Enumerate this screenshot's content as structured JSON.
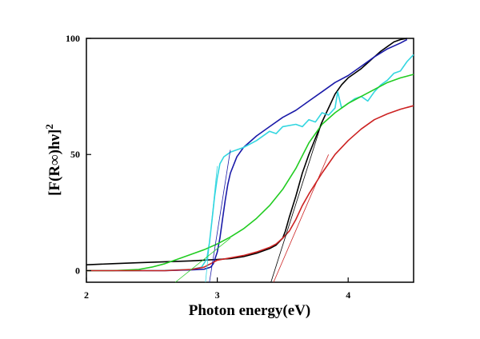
{
  "chart_data": {
    "type": "line",
    "title": "",
    "xlabel": "Photon energy(eV)",
    "ylabel_main": "[F(R∞)hν]",
    "ylabel_sup": "2",
    "xlim": [
      2.0,
      4.5
    ],
    "ylim": [
      -5,
      100
    ],
    "x_ticks": [
      2,
      3,
      4
    ],
    "x_tick_labels": [
      "2",
      "3",
      "4"
    ],
    "y_ticks": [
      0,
      50,
      100
    ],
    "y_tick_labels": [
      "0",
      "50",
      "100"
    ],
    "grid": false,
    "legend": "none",
    "series": [
      {
        "color": "#000000",
        "points": [
          [
            2.0,
            2.5
          ],
          [
            2.2,
            3.0
          ],
          [
            2.4,
            3.4
          ],
          [
            2.6,
            3.8
          ],
          [
            2.8,
            4.2
          ],
          [
            3.0,
            4.8
          ],
          [
            3.1,
            5.2
          ],
          [
            3.2,
            6.0
          ],
          [
            3.3,
            7.5
          ],
          [
            3.4,
            9.5
          ],
          [
            3.45,
            11.0
          ],
          [
            3.5,
            14
          ],
          [
            3.52,
            17
          ],
          [
            3.55,
            23
          ],
          [
            3.6,
            32
          ],
          [
            3.65,
            42
          ],
          [
            3.7,
            50
          ],
          [
            3.75,
            57
          ],
          [
            3.8,
            64
          ],
          [
            3.85,
            70
          ],
          [
            3.9,
            76
          ],
          [
            3.95,
            80
          ],
          [
            4.0,
            83
          ],
          [
            4.05,
            85
          ],
          [
            4.1,
            87
          ],
          [
            4.15,
            89.5
          ],
          [
            4.2,
            92
          ],
          [
            4.25,
            94.5
          ],
          [
            4.3,
            96.5
          ],
          [
            4.35,
            98.5
          ],
          [
            4.4,
            99.5
          ],
          [
            4.45,
            100
          ]
        ]
      },
      {
        "color": "#1a1aa8",
        "points": [
          [
            2.0,
            0
          ],
          [
            2.4,
            0
          ],
          [
            2.6,
            0
          ],
          [
            2.8,
            0.3
          ],
          [
            2.9,
            0.6
          ],
          [
            2.95,
            1.5
          ],
          [
            2.97,
            3
          ],
          [
            3.0,
            8
          ],
          [
            3.02,
            14
          ],
          [
            3.04,
            22
          ],
          [
            3.06,
            30
          ],
          [
            3.08,
            37
          ],
          [
            3.1,
            42
          ],
          [
            3.15,
            49
          ],
          [
            3.2,
            53
          ],
          [
            3.3,
            58
          ],
          [
            3.4,
            62
          ],
          [
            3.5,
            66
          ],
          [
            3.6,
            69
          ],
          [
            3.7,
            73
          ],
          [
            3.8,
            77
          ],
          [
            3.9,
            81
          ],
          [
            4.0,
            84
          ],
          [
            4.1,
            88
          ],
          [
            4.2,
            92
          ],
          [
            4.3,
            95.5
          ],
          [
            4.4,
            98
          ],
          [
            4.45,
            99.5
          ]
        ]
      },
      {
        "color": "#33d6e0",
        "points": [
          [
            2.0,
            0
          ],
          [
            2.4,
            0
          ],
          [
            2.6,
            0.1
          ],
          [
            2.8,
            0.5
          ],
          [
            2.88,
            1.5
          ],
          [
            2.92,
            5
          ],
          [
            2.94,
            12
          ],
          [
            2.96,
            22
          ],
          [
            2.98,
            32
          ],
          [
            3.0,
            40
          ],
          [
            3.02,
            46
          ],
          [
            3.05,
            49
          ],
          [
            3.1,
            51
          ],
          [
            3.15,
            52
          ],
          [
            3.2,
            53
          ],
          [
            3.3,
            56
          ],
          [
            3.4,
            60
          ],
          [
            3.45,
            59
          ],
          [
            3.5,
            62
          ],
          [
            3.6,
            63
          ],
          [
            3.65,
            62
          ],
          [
            3.7,
            65
          ],
          [
            3.75,
            64
          ],
          [
            3.8,
            68
          ],
          [
            3.85,
            67
          ],
          [
            3.9,
            70
          ],
          [
            3.92,
            77
          ],
          [
            3.95,
            70
          ],
          [
            4.0,
            72
          ],
          [
            4.05,
            74
          ],
          [
            4.1,
            75
          ],
          [
            4.15,
            73
          ],
          [
            4.2,
            77
          ],
          [
            4.25,
            80
          ],
          [
            4.3,
            82
          ],
          [
            4.35,
            85
          ],
          [
            4.4,
            86
          ],
          [
            4.45,
            90
          ],
          [
            4.5,
            93
          ]
        ]
      },
      {
        "color": "#22cc22",
        "points": [
          [
            2.0,
            0
          ],
          [
            2.2,
            0
          ],
          [
            2.4,
            0.5
          ],
          [
            2.5,
            1.5
          ],
          [
            2.6,
            3.0
          ],
          [
            2.7,
            5.0
          ],
          [
            2.8,
            7.0
          ],
          [
            2.9,
            9.0
          ],
          [
            3.0,
            11.5
          ],
          [
            3.1,
            14.5
          ],
          [
            3.2,
            18
          ],
          [
            3.3,
            22.5
          ],
          [
            3.4,
            28
          ],
          [
            3.5,
            35
          ],
          [
            3.6,
            44
          ],
          [
            3.7,
            55
          ],
          [
            3.8,
            63
          ],
          [
            3.9,
            68
          ],
          [
            4.0,
            72
          ],
          [
            4.1,
            75
          ],
          [
            4.2,
            78
          ],
          [
            4.3,
            81
          ],
          [
            4.4,
            83
          ],
          [
            4.5,
            84.5
          ]
        ]
      },
      {
        "color": "#cc2222",
        "points": [
          [
            2.0,
            0
          ],
          [
            2.6,
            0
          ],
          [
            2.8,
            0.5
          ],
          [
            2.9,
            1.5
          ],
          [
            2.95,
            3.0
          ],
          [
            3.0,
            4.5
          ],
          [
            3.1,
            5.5
          ],
          [
            3.2,
            6.5
          ],
          [
            3.3,
            8.0
          ],
          [
            3.4,
            10.0
          ],
          [
            3.45,
            11.5
          ],
          [
            3.5,
            14
          ],
          [
            3.55,
            17
          ],
          [
            3.6,
            22
          ],
          [
            3.65,
            28
          ],
          [
            3.7,
            33
          ],
          [
            3.8,
            42
          ],
          [
            3.9,
            50
          ],
          [
            4.0,
            56
          ],
          [
            4.1,
            61
          ],
          [
            4.2,
            65
          ],
          [
            4.3,
            67.5
          ],
          [
            4.4,
            69.5
          ],
          [
            4.5,
            71
          ]
        ]
      }
    ],
    "tangent_lines": [
      {
        "color": "#1a1aa8",
        "from": [
          2.94,
          -5
        ],
        "to": [
          3.1,
          52
        ]
      },
      {
        "color": "#33d6e0",
        "from": [
          2.91,
          -5
        ],
        "to": [
          3.0,
          45
        ]
      },
      {
        "color": "#22cc22",
        "from": [
          2.68,
          -5
        ],
        "to": [
          3.1,
          14
        ]
      },
      {
        "color": "#cc2222",
        "from": [
          3.43,
          -5
        ],
        "to": [
          3.85,
          50
        ]
      },
      {
        "color": "#000000",
        "from": [
          3.41,
          -5
        ],
        "to": [
          3.8,
          64
        ]
      }
    ]
  }
}
